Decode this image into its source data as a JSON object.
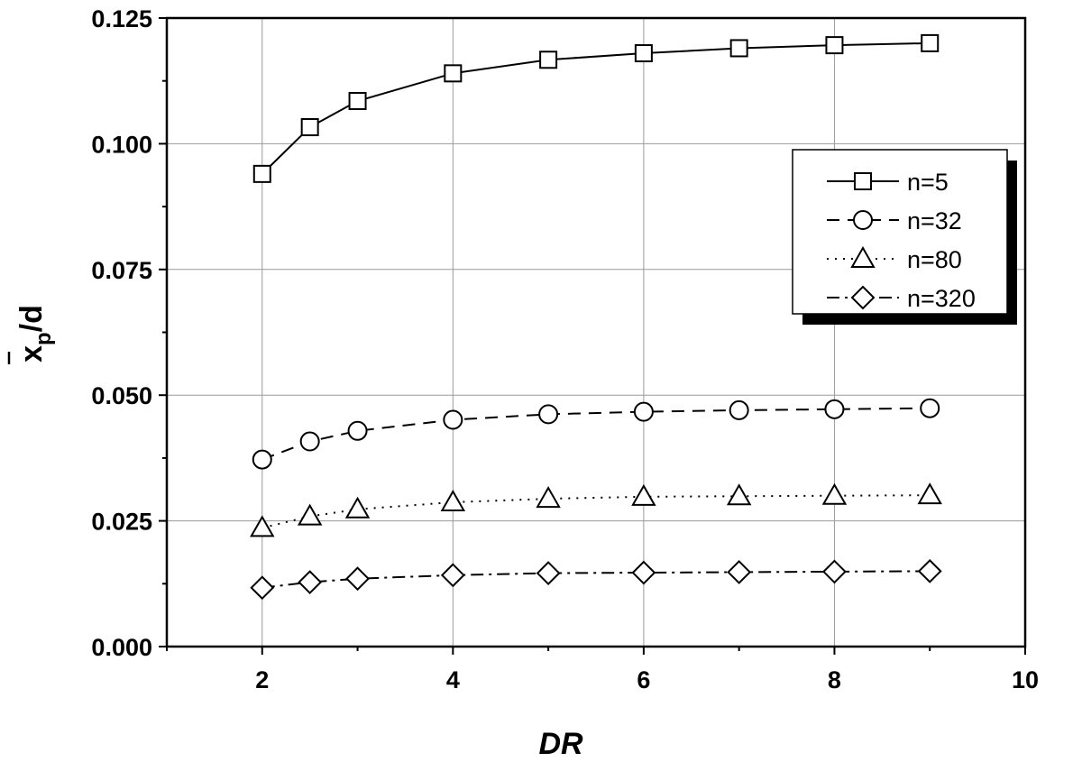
{
  "chart_data": {
    "type": "line",
    "title": "",
    "xlabel": "DR",
    "ylabel": "x̄p/d",
    "ylabel_main": "x",
    "ylabel_sub": "p",
    "ylabel_rest": "/d",
    "xlim": [
      1,
      10
    ],
    "ylim": [
      0,
      0.125
    ],
    "x_ticks": [
      2,
      4,
      6,
      8,
      10
    ],
    "x_tick_labels": [
      "2",
      "4",
      "6",
      "8",
      "10"
    ],
    "y_ticks": [
      0,
      0.025,
      0.05,
      0.075,
      0.1,
      0.125
    ],
    "y_tick_labels": [
      "0.000",
      "0.025",
      "0.050",
      "0.075",
      "0.100",
      "0.125"
    ],
    "grid": true,
    "legend_position": "top-right",
    "x": [
      2,
      2.5,
      3,
      4,
      5,
      6,
      7,
      8,
      9
    ],
    "series": [
      {
        "name": "n=5",
        "marker": "square",
        "line_style": "solid",
        "values": [
          0.094,
          0.1033,
          0.1085,
          0.114,
          0.1167,
          0.118,
          0.119,
          0.1196,
          0.12
        ]
      },
      {
        "name": "n=32",
        "marker": "circle",
        "line_style": "dashed",
        "values": [
          0.0372,
          0.0408,
          0.0429,
          0.0451,
          0.0462,
          0.0467,
          0.047,
          0.0472,
          0.0474
        ]
      },
      {
        "name": "n=80",
        "marker": "triangle",
        "line_style": "dotted",
        "values": [
          0.0236,
          0.0259,
          0.0273,
          0.0287,
          0.0294,
          0.0298,
          0.0299,
          0.03,
          0.0301
        ]
      },
      {
        "name": "n=320",
        "marker": "diamond",
        "line_style": "dashdot",
        "values": [
          0.0117,
          0.0128,
          0.0135,
          0.0142,
          0.0146,
          0.0147,
          0.0148,
          0.0149,
          0.015
        ]
      }
    ]
  }
}
